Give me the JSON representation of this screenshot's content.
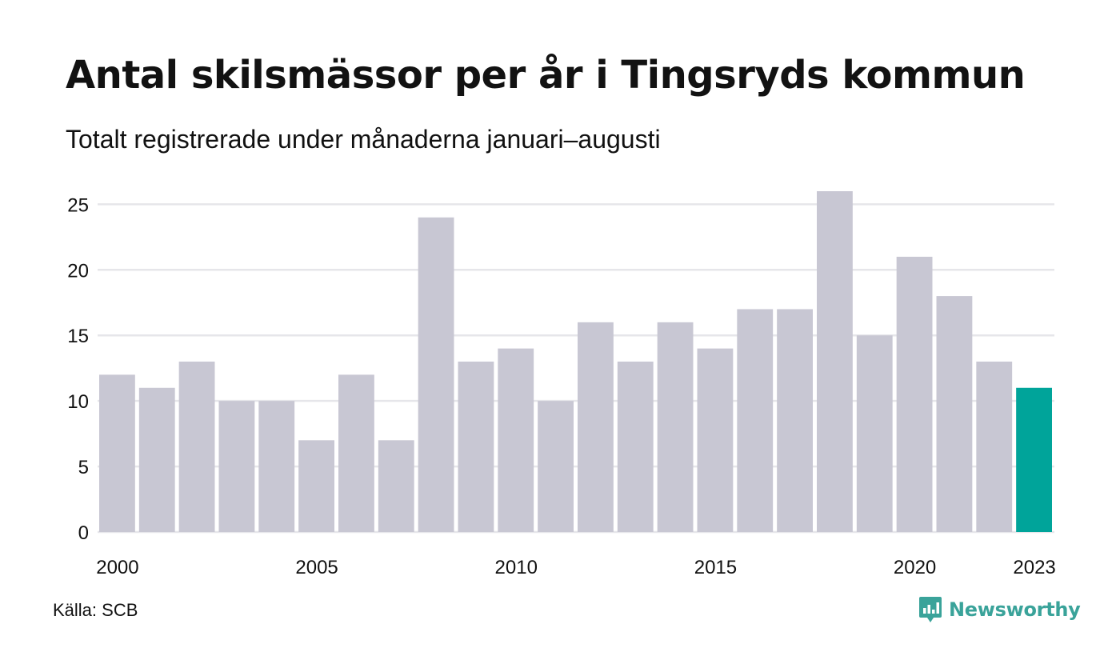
{
  "title": "Antal skilsmässor per år i Tingsryds kommun",
  "subtitle": "Totalt registrerade under månaderna januari–augusti",
  "source": "Källa: SCB",
  "brand": "Newsworthy",
  "colors": {
    "bar": "#c8c7d3",
    "highlight": "#00a49a",
    "grid": "#e6e6ea",
    "brand": "#3aa39a"
  },
  "chart_data": {
    "type": "bar",
    "categories": [
      "2000",
      "2001",
      "2002",
      "2003",
      "2004",
      "2005",
      "2006",
      "2007",
      "2008",
      "2009",
      "2010",
      "2011",
      "2012",
      "2013",
      "2014",
      "2015",
      "2016",
      "2017",
      "2018",
      "2019",
      "2020",
      "2021",
      "2022",
      "2023"
    ],
    "values": [
      12,
      11,
      13,
      10,
      10,
      7,
      12,
      7,
      24,
      13,
      14,
      10,
      16,
      13,
      16,
      14,
      17,
      17,
      26,
      15,
      21,
      18,
      13,
      11
    ],
    "highlight_index": 23,
    "x_tick_labels": [
      "2000",
      "2005",
      "2010",
      "2015",
      "2020",
      "2023"
    ],
    "y_ticks": [
      0,
      5,
      10,
      15,
      20,
      25
    ],
    "ylim": [
      0,
      26
    ],
    "grid": true,
    "legend": "none",
    "title": "Antal skilsmässor per år i Tingsryds kommun",
    "subtitle": "Totalt registrerade under månaderna januari–augusti",
    "xlabel": "",
    "ylabel": ""
  }
}
